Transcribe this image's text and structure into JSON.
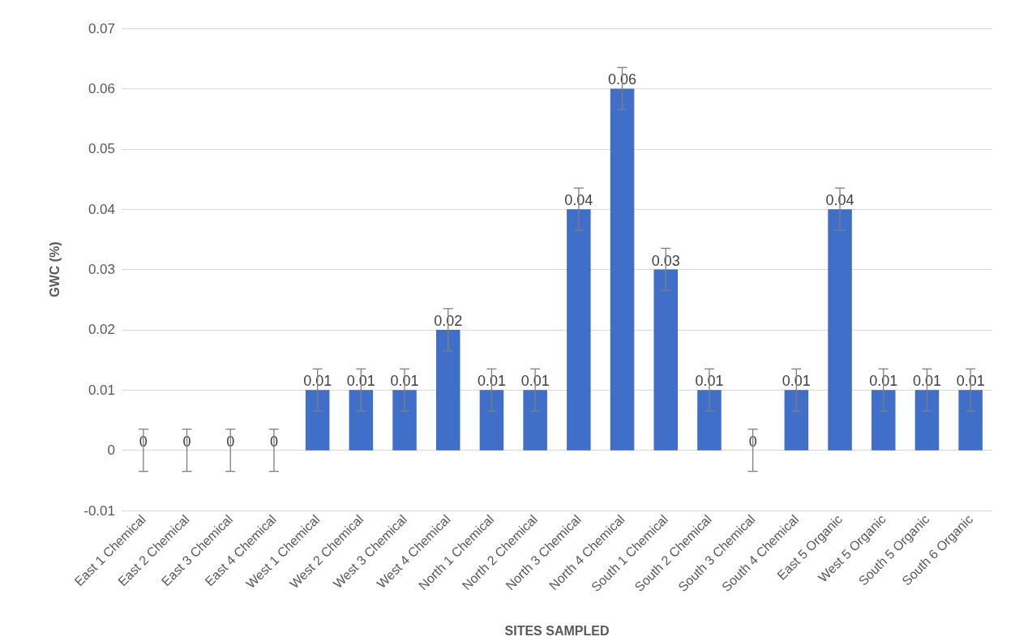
{
  "chart_data": {
    "type": "bar",
    "xlabel": "SITES SAMPLED",
    "ylabel": "GWC (%)",
    "categories": [
      "East 1 Chemical",
      "East 2 Chemical",
      "East 3 Chemical",
      "East 4 Chemical",
      "West 1 Chemical",
      "West 2 Chemical",
      "West 3 Chemical",
      "West 4 Chemical",
      "North 1 Chemical",
      "North 2 Chemical",
      "North 3 Chemical",
      "North 4 Chemical",
      "South 1 Chemical",
      "South 2 Chemical",
      "South 3 Chemical",
      "South 4 Chemical",
      "East 5 Organic",
      "West 5 Organic",
      "South 5 Organic",
      "South 6 Organic"
    ],
    "values": [
      0,
      0,
      0,
      0,
      0.01,
      0.01,
      0.01,
      0.02,
      0.01,
      0.01,
      0.04,
      0.06,
      0.03,
      0.01,
      0,
      0.01,
      0.04,
      0.01,
      0.01,
      0.01
    ],
    "errors": [
      0.0035,
      0.0035,
      0.0035,
      0.0035,
      0.0035,
      0.0035,
      0.0035,
      0.0035,
      0.0035,
      0.0035,
      0.0035,
      0.0035,
      0.0035,
      0.0035,
      0.0035,
      0.0035,
      0.0035,
      0.0035,
      0.0035,
      0.0035
    ],
    "color": "#3f6fc9",
    "data_labels": true,
    "grid": "y",
    "ylim": [
      -0.01,
      0.07
    ],
    "yticks": [
      -0.01,
      0,
      0.01,
      0.02,
      0.03,
      0.04,
      0.05,
      0.06,
      0.07
    ]
  }
}
